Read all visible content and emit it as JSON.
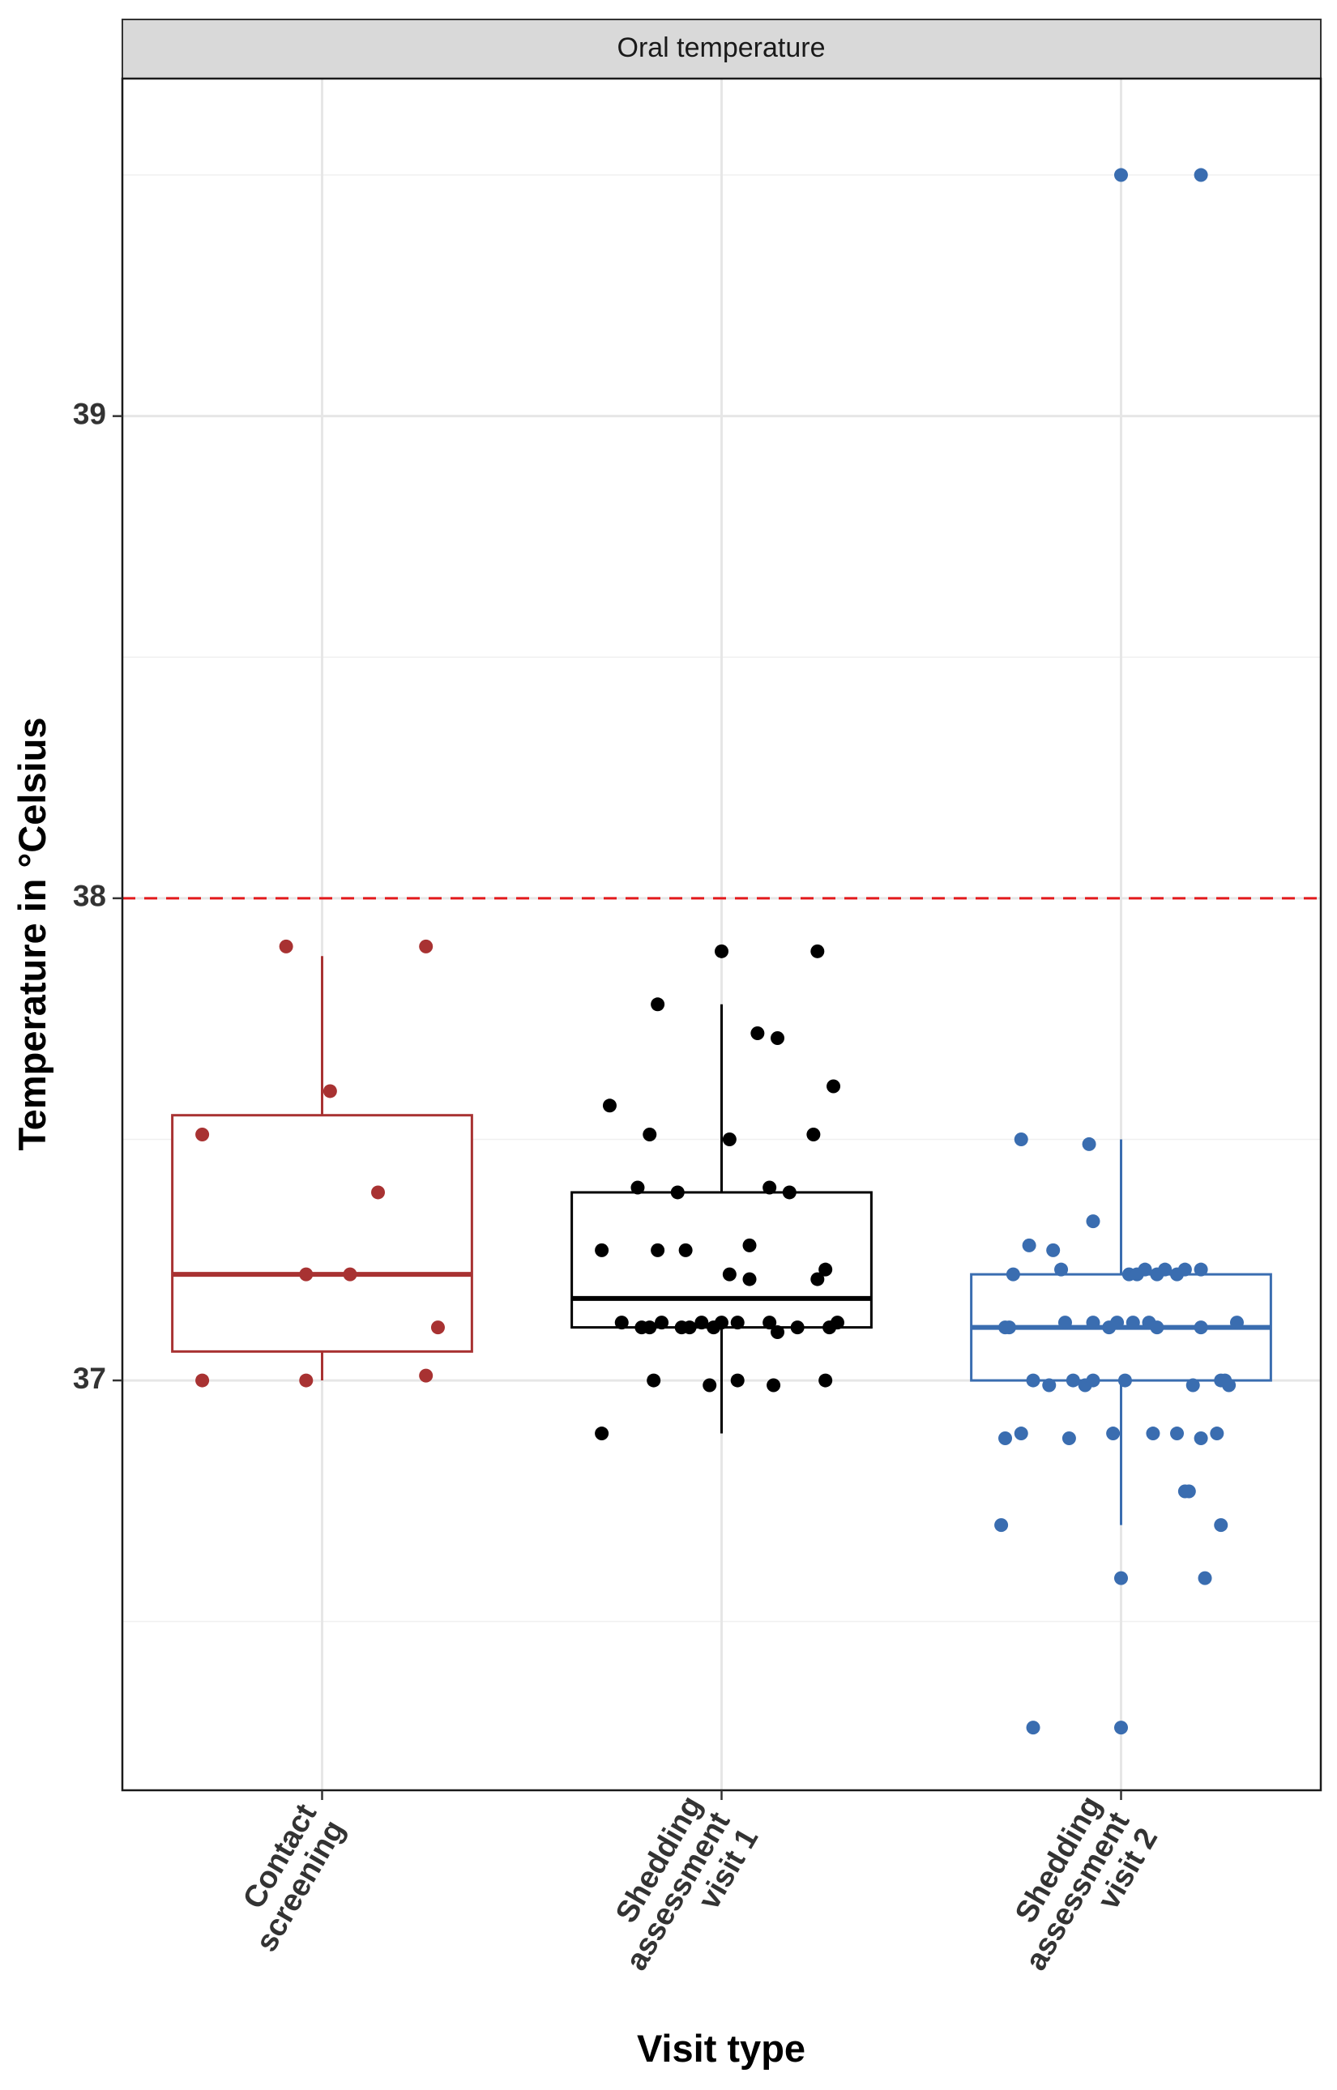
{
  "chart_data": {
    "type": "box",
    "title": "",
    "facet_label": "Oral temperature",
    "xlabel": "Visit type",
    "ylabel": "Temperature in °Celsius",
    "ylim": [
      36.15,
      39.7
    ],
    "y_ticks": [
      37,
      38,
      39
    ],
    "y_tick_labels": [
      "37",
      "38",
      "39"
    ],
    "grid": true,
    "threshold": {
      "y": 38,
      "color": "#e31a1c",
      "style": "dashed"
    },
    "categories": [
      {
        "name": "contact",
        "label_lines": [
          "Contact",
          "screening"
        ]
      },
      {
        "name": "shed1",
        "label_lines": [
          "Shedding",
          "assessment",
          "visit 1"
        ]
      },
      {
        "name": "shed2",
        "label_lines": [
          "Shedding",
          "assessment",
          "visit 2"
        ]
      }
    ],
    "series": [
      {
        "category": "contact",
        "color": "#a83232",
        "box": {
          "whisker_low": 37.0,
          "q1": 37.06,
          "median": 37.22,
          "q3": 37.55,
          "whisker_high": 37.88
        },
        "points": [
          [
            -0.09,
            37.9
          ],
          [
            0.26,
            37.9
          ],
          [
            0.02,
            37.6
          ],
          [
            -0.3,
            37.51
          ],
          [
            0.14,
            37.39
          ],
          [
            -0.04,
            37.22
          ],
          [
            0.07,
            37.22
          ],
          [
            0.29,
            37.11
          ],
          [
            -0.3,
            37.0
          ],
          [
            -0.04,
            37.0
          ],
          [
            0.26,
            37.01
          ]
        ]
      },
      {
        "category": "shed1",
        "color": "#000000",
        "box": {
          "whisker_low": 36.89,
          "q1": 37.11,
          "median": 37.17,
          "q3": 37.39,
          "whisker_high": 37.78
        },
        "points": [
          [
            0.0,
            37.89
          ],
          [
            0.24,
            37.89
          ],
          [
            -0.16,
            37.78
          ],
          [
            0.09,
            37.72
          ],
          [
            0.14,
            37.71
          ],
          [
            0.28,
            37.61
          ],
          [
            -0.28,
            37.57
          ],
          [
            -0.18,
            37.51
          ],
          [
            0.02,
            37.5
          ],
          [
            0.23,
            37.51
          ],
          [
            -0.21,
            37.4
          ],
          [
            -0.11,
            37.39
          ],
          [
            0.12,
            37.4
          ],
          [
            0.17,
            37.39
          ],
          [
            -0.3,
            37.27
          ],
          [
            -0.16,
            37.27
          ],
          [
            -0.09,
            37.27
          ],
          [
            0.07,
            37.28
          ],
          [
            0.02,
            37.22
          ],
          [
            0.07,
            37.21
          ],
          [
            0.24,
            37.21
          ],
          [
            0.26,
            37.23
          ],
          [
            -0.25,
            37.12
          ],
          [
            -0.2,
            37.11
          ],
          [
            -0.18,
            37.11
          ],
          [
            -0.15,
            37.12
          ],
          [
            -0.1,
            37.11
          ],
          [
            -0.08,
            37.11
          ],
          [
            -0.05,
            37.12
          ],
          [
            -0.02,
            37.11
          ],
          [
            0.0,
            37.12
          ],
          [
            0.04,
            37.12
          ],
          [
            0.12,
            37.12
          ],
          [
            0.14,
            37.1
          ],
          [
            0.19,
            37.11
          ],
          [
            0.27,
            37.11
          ],
          [
            0.29,
            37.12
          ],
          [
            -0.17,
            37.0
          ],
          [
            -0.03,
            36.99
          ],
          [
            0.04,
            37.0
          ],
          [
            0.13,
            36.99
          ],
          [
            0.26,
            37.0
          ],
          [
            -0.3,
            36.89
          ]
        ]
      },
      {
        "category": "shed2",
        "color": "#3a6db0",
        "box": {
          "whisker_low": 36.7,
          "q1": 37.0,
          "median": 37.11,
          "q3": 37.22,
          "whisker_high": 37.5
        },
        "points": [
          [
            0.0,
            39.5
          ],
          [
            0.2,
            39.5
          ],
          [
            -0.25,
            37.5
          ],
          [
            -0.08,
            37.49
          ],
          [
            -0.07,
            37.33
          ],
          [
            -0.23,
            37.28
          ],
          [
            -0.17,
            37.27
          ],
          [
            -0.27,
            37.22
          ],
          [
            -0.15,
            37.23
          ],
          [
            0.02,
            37.22
          ],
          [
            0.04,
            37.22
          ],
          [
            0.06,
            37.23
          ],
          [
            0.09,
            37.22
          ],
          [
            0.11,
            37.23
          ],
          [
            0.14,
            37.22
          ],
          [
            0.16,
            37.23
          ],
          [
            0.2,
            37.23
          ],
          [
            -0.29,
            37.11
          ],
          [
            -0.28,
            37.11
          ],
          [
            -0.14,
            37.12
          ],
          [
            -0.07,
            37.12
          ],
          [
            -0.03,
            37.11
          ],
          [
            -0.01,
            37.12
          ],
          [
            0.03,
            37.12
          ],
          [
            0.07,
            37.12
          ],
          [
            0.09,
            37.11
          ],
          [
            0.2,
            37.11
          ],
          [
            0.29,
            37.12
          ],
          [
            -0.22,
            37.0
          ],
          [
            -0.18,
            36.99
          ],
          [
            -0.12,
            37.0
          ],
          [
            -0.09,
            36.99
          ],
          [
            -0.07,
            37.0
          ],
          [
            0.01,
            37.0
          ],
          [
            0.18,
            36.99
          ],
          [
            0.25,
            37.0
          ],
          [
            0.26,
            37.0
          ],
          [
            0.27,
            36.99
          ],
          [
            -0.29,
            36.88
          ],
          [
            -0.25,
            36.89
          ],
          [
            -0.13,
            36.88
          ],
          [
            -0.02,
            36.89
          ],
          [
            0.08,
            36.89
          ],
          [
            0.14,
            36.89
          ],
          [
            0.2,
            36.88
          ],
          [
            0.24,
            36.89
          ],
          [
            0.16,
            36.77
          ],
          [
            0.17,
            36.77
          ],
          [
            -0.3,
            36.7
          ],
          [
            0.25,
            36.7
          ],
          [
            0.0,
            36.59
          ],
          [
            0.21,
            36.59
          ],
          [
            -0.22,
            36.28
          ],
          [
            0.0,
            36.28
          ]
        ]
      }
    ]
  }
}
